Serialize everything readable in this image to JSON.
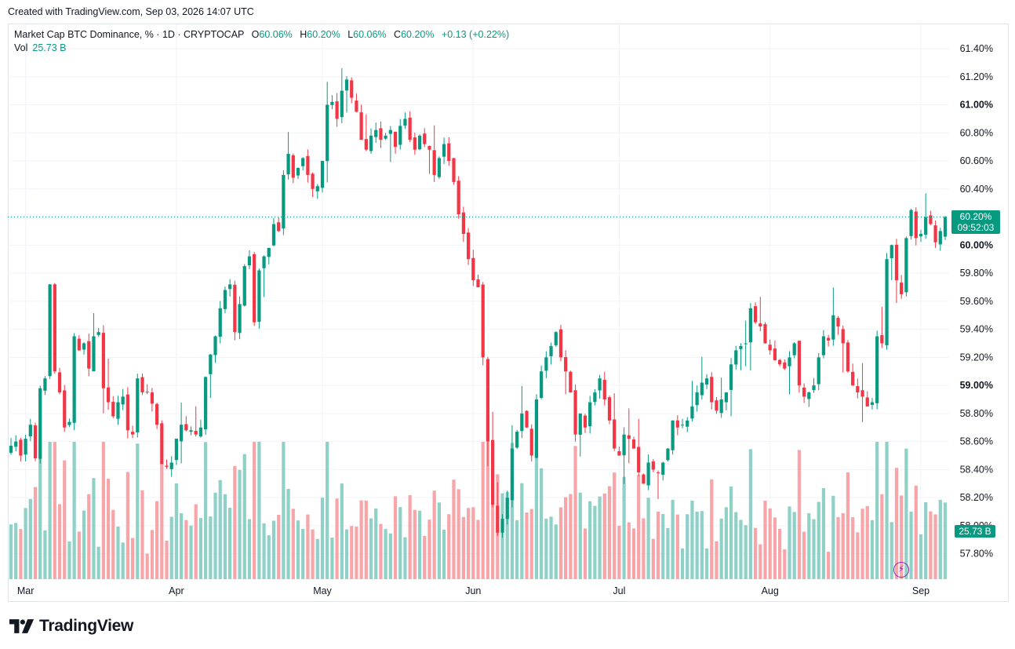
{
  "header": {
    "created_text": "Created with TradingView.com, Sep 03, 2026 14:07 UTC"
  },
  "legend": {
    "symbol": "Market Cap BTC Dominance, % · 1D · CRYPTOCAP",
    "o_label": "O",
    "o_value": "60.06%",
    "h_label": "H",
    "h_value": "60.20%",
    "l_label": "L",
    "l_value": "60.06%",
    "c_label": "C",
    "c_value": "60.20%",
    "change": "+0.13 (+0.22%)",
    "vol_label": "Vol",
    "vol_value": "25.73 B"
  },
  "price_tag": {
    "price": "60.20%",
    "countdown": "09:52:03"
  },
  "vol_tag": "25.73 B",
  "brand": {
    "name": "TradingView"
  },
  "colors": {
    "up": "#089981",
    "down": "#f23645",
    "vol_up": "#8fd0c7",
    "vol_down": "#f7a5a9",
    "grid": "#f0f3fa",
    "axis_text": "#131722"
  },
  "chart_data": {
    "type": "candlestick",
    "ylim": [
      57.6,
      61.5
    ],
    "yticks": [
      {
        "value": 61.4,
        "label": "61.40%"
      },
      {
        "value": 61.2,
        "label": "61.20%"
      },
      {
        "value": 61.0,
        "label": "61.00%",
        "bold": true
      },
      {
        "value": 60.8,
        "label": "60.80%"
      },
      {
        "value": 60.6,
        "label": "60.60%"
      },
      {
        "value": 60.4,
        "label": "60.40%"
      },
      {
        "value": 60.0,
        "label": "60.00%",
        "bold": true
      },
      {
        "value": 59.8,
        "label": "59.80%"
      },
      {
        "value": 59.6,
        "label": "59.60%"
      },
      {
        "value": 59.4,
        "label": "59.40%"
      },
      {
        "value": 59.2,
        "label": "59.20%"
      },
      {
        "value": 59.0,
        "label": "59.00%",
        "bold": true
      },
      {
        "value": 58.8,
        "label": "58.80%"
      },
      {
        "value": 58.6,
        "label": "58.60%"
      },
      {
        "value": 58.4,
        "label": "58.40%"
      },
      {
        "value": 58.2,
        "label": "58.20%"
      },
      {
        "value": 58.0,
        "label": "58.00%"
      },
      {
        "value": 57.8,
        "label": "57.80%"
      }
    ],
    "xticks": [
      {
        "index": 3,
        "label": "Mar"
      },
      {
        "index": 34,
        "label": "Apr"
      },
      {
        "index": 64,
        "label": "May"
      },
      {
        "index": 95,
        "label": "Jun"
      },
      {
        "index": 125,
        "label": "Jul"
      },
      {
        "index": 156,
        "label": "Aug"
      },
      {
        "index": 187,
        "label": "Sep"
      }
    ],
    "last_price": 60.2,
    "close_path": [
      [
        0,
        58.57
      ],
      [
        1,
        58.6
      ],
      [
        2,
        58.5
      ],
      [
        3,
        58.62
      ],
      [
        4,
        58.72
      ],
      [
        5,
        58.48
      ],
      [
        6,
        58.98
      ],
      [
        7,
        59.05
      ],
      [
        8,
        59.72
      ],
      [
        9,
        59.1
      ],
      [
        10,
        58.95
      ],
      [
        11,
        58.7
      ],
      [
        12,
        58.74
      ],
      [
        13,
        59.35
      ],
      [
        14,
        59.25
      ],
      [
        15,
        59.3
      ],
      [
        16,
        59.12
      ],
      [
        17,
        59.35
      ],
      [
        18,
        59.38
      ],
      [
        19,
        58.98
      ],
      [
        20,
        58.88
      ],
      [
        21,
        58.78
      ],
      [
        22,
        58.88
      ],
      [
        23,
        58.92
      ],
      [
        24,
        58.68
      ],
      [
        25,
        58.65
      ],
      [
        26,
        59.05
      ],
      [
        27,
        58.95
      ],
      [
        28,
        58.95
      ],
      [
        29,
        58.87
      ],
      [
        30,
        58.72
      ],
      [
        31,
        58.44
      ],
      [
        32,
        58.42
      ],
      [
        33,
        58.45
      ],
      [
        34,
        58.62
      ],
      [
        35,
        58.72
      ],
      [
        36,
        58.68
      ],
      [
        37,
        58.68
      ],
      [
        38,
        58.65
      ],
      [
        39,
        58.7
      ],
      [
        40,
        59.06
      ],
      [
        41,
        59.22
      ],
      [
        42,
        59.35
      ],
      [
        43,
        59.55
      ],
      [
        44,
        59.68
      ],
      [
        45,
        59.72
      ],
      [
        46,
        59.38
      ],
      [
        47,
        59.58
      ],
      [
        48,
        59.85
      ],
      [
        49,
        59.92
      ],
      [
        50,
        59.45
      ],
      [
        51,
        59.82
      ],
      [
        52,
        59.92
      ],
      [
        53,
        59.98
      ],
      [
        54,
        60.15
      ],
      [
        55,
        60.1
      ],
      [
        56,
        60.5
      ],
      [
        57,
        60.65
      ],
      [
        58,
        60.48
      ],
      [
        59,
        60.55
      ],
      [
        60,
        60.62
      ],
      [
        61,
        60.5
      ],
      [
        62,
        60.4
      ],
      [
        63,
        60.42
      ],
      [
        64,
        60.6
      ],
      [
        65,
        61.0
      ],
      [
        66,
        61.02
      ],
      [
        67,
        60.9
      ],
      [
        68,
        61.1
      ],
      [
        69,
        61.18
      ],
      [
        70,
        61.05
      ],
      [
        71,
        60.95
      ],
      [
        72,
        60.75
      ],
      [
        73,
        60.68
      ],
      [
        74,
        60.78
      ],
      [
        75,
        60.82
      ],
      [
        76,
        60.75
      ],
      [
        77,
        60.78
      ],
      [
        78,
        60.82
      ],
      [
        79,
        60.7
      ],
      [
        80,
        60.85
      ],
      [
        81,
        60.9
      ],
      [
        82,
        60.75
      ],
      [
        83,
        60.68
      ],
      [
        84,
        60.78
      ],
      [
        85,
        60.72
      ],
      [
        86,
        60.68
      ],
      [
        87,
        60.5
      ],
      [
        88,
        60.62
      ],
      [
        89,
        60.72
      ],
      [
        90,
        60.6
      ],
      [
        91,
        60.45
      ],
      [
        92,
        60.22
      ],
      [
        93,
        60.08
      ],
      [
        94,
        59.9
      ],
      [
        95,
        59.75
      ],
      [
        96,
        59.7
      ],
      [
        97,
        59.2
      ],
      [
        98,
        58.6
      ],
      [
        99,
        58.15
      ],
      [
        100,
        57.95
      ],
      [
        101,
        58.05
      ],
      [
        102,
        58.2
      ],
      [
        103,
        58.55
      ],
      [
        104,
        58.67
      ],
      [
        105,
        58.8
      ],
      [
        106,
        58.7
      ],
      [
        107,
        58.5
      ],
      [
        108,
        58.9
      ],
      [
        109,
        59.1
      ],
      [
        110,
        59.2
      ],
      [
        111,
        59.28
      ],
      [
        112,
        59.38
      ],
      [
        113,
        59.2
      ],
      [
        114,
        59.1
      ],
      [
        115,
        58.95
      ],
      [
        116,
        58.65
      ],
      [
        117,
        58.8
      ],
      [
        118,
        58.7
      ],
      [
        119,
        58.88
      ],
      [
        120,
        58.95
      ],
      [
        121,
        59.05
      ],
      [
        122,
        58.9
      ],
      [
        123,
        58.75
      ],
      [
        124,
        58.55
      ],
      [
        125,
        58.5
      ],
      [
        126,
        58.65
      ],
      [
        127,
        58.62
      ],
      [
        128,
        58.55
      ],
      [
        129,
        58.38
      ],
      [
        130,
        58.3
      ],
      [
        131,
        58.45
      ],
      [
        132,
        58.4
      ],
      [
        133,
        58.38
      ],
      [
        134,
        58.45
      ],
      [
        135,
        58.55
      ],
      [
        136,
        58.75
      ],
      [
        137,
        58.7
      ],
      [
        138,
        58.72
      ],
      [
        139,
        58.75
      ],
      [
        140,
        58.85
      ],
      [
        141,
        58.95
      ],
      [
        142,
        59.02
      ],
      [
        143,
        59.05
      ],
      [
        144,
        58.88
      ],
      [
        145,
        58.82
      ],
      [
        146,
        58.9
      ],
      [
        147,
        58.95
      ],
      [
        148,
        59.15
      ],
      [
        149,
        59.25
      ],
      [
        150,
        59.28
      ],
      [
        151,
        59.3
      ],
      [
        152,
        59.55
      ],
      [
        153,
        59.45
      ],
      [
        154,
        59.42
      ],
      [
        155,
        59.3
      ],
      [
        156,
        59.25
      ],
      [
        157,
        59.18
      ],
      [
        158,
        59.15
      ],
      [
        159,
        59.12
      ],
      [
        160,
        59.2
      ],
      [
        161,
        59.3
      ],
      [
        162,
        59.0
      ],
      [
        163,
        58.92
      ],
      [
        164,
        58.95
      ],
      [
        165,
        59.0
      ],
      [
        166,
        59.2
      ],
      [
        167,
        59.35
      ],
      [
        168,
        59.32
      ],
      [
        169,
        59.5
      ],
      [
        170,
        59.42
      ],
      [
        171,
        59.3
      ],
      [
        172,
        59.1
      ],
      [
        173,
        59.0
      ],
      [
        174,
        58.95
      ],
      [
        175,
        58.92
      ],
      [
        176,
        58.85
      ],
      [
        177,
        58.88
      ],
      [
        178,
        59.35
      ],
      [
        179,
        59.3
      ],
      [
        180,
        59.9
      ],
      [
        181,
        60.0
      ],
      [
        182,
        59.75
      ],
      [
        183,
        59.65
      ],
      [
        184,
        60.05
      ],
      [
        185,
        60.25
      ],
      [
        186,
        60.05
      ],
      [
        187,
        60.08
      ],
      [
        188,
        60.2
      ],
      [
        189,
        60.15
      ],
      [
        190,
        60.02
      ],
      [
        191,
        60.1
      ],
      [
        192,
        60.2
      ]
    ]
  }
}
